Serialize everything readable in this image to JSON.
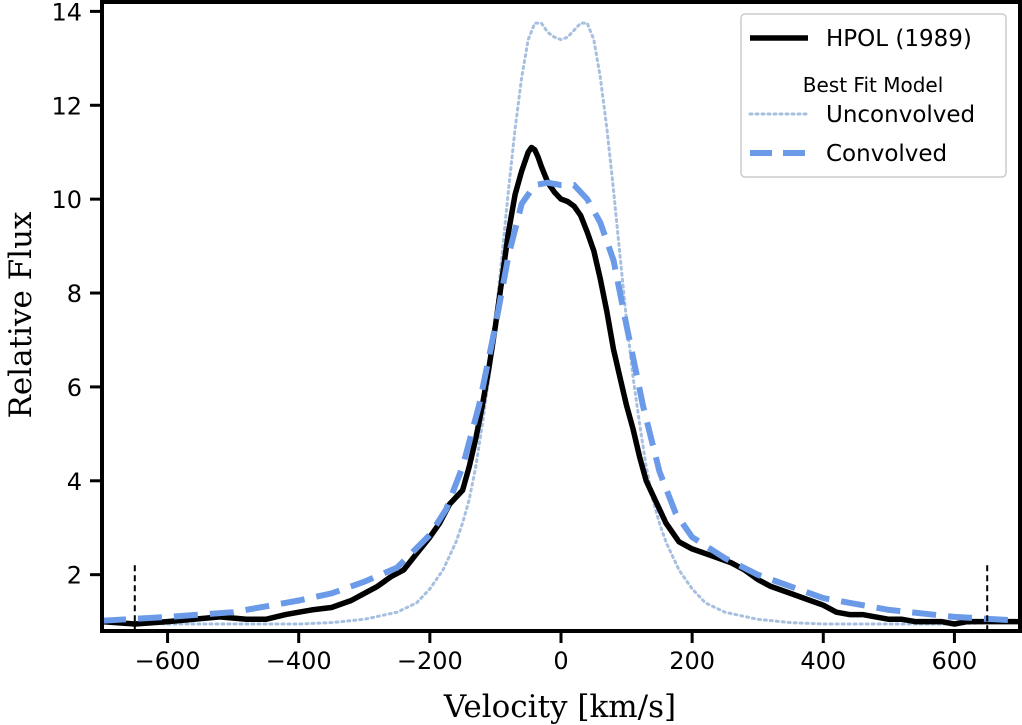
{
  "chart_data": {
    "type": "line",
    "title": "",
    "xlabel": "Velocity [km/s]",
    "ylabel": "Relative Flux",
    "xlim": [
      -700,
      700
    ],
    "ylim": [
      0.8,
      14.2
    ],
    "xticks": [
      -600,
      -400,
      -200,
      0,
      200,
      400,
      600
    ],
    "xtick_labels": [
      "−600",
      "−400",
      "−200",
      "0",
      "200",
      "400",
      "600"
    ],
    "yticks": [
      2,
      4,
      6,
      8,
      10,
      12,
      14
    ],
    "ytick_labels": [
      "2",
      "4",
      "6",
      "8",
      "10",
      "12",
      "14"
    ],
    "grid": false,
    "legend_position": "top-right",
    "legend": {
      "entry1": "HPOL (1989)",
      "group_title": "Best Fit Model",
      "entry2": "Unconvolved",
      "entry3": "Convolved"
    },
    "vlines": [
      -650,
      650
    ],
    "colors": {
      "hpol": "#000000",
      "unconvolved": "#a7c0e0",
      "convolved": "#6b9be8"
    },
    "series": [
      {
        "name": "HPOL (1989)",
        "style": "solid",
        "x": [
          -700,
          -650,
          -600,
          -560,
          -520,
          -480,
          -450,
          -420,
          -400,
          -380,
          -350,
          -320,
          -300,
          -280,
          -260,
          -240,
          -220,
          -200,
          -185,
          -170,
          -150,
          -140,
          -130,
          -120,
          -110,
          -100,
          -90,
          -80,
          -70,
          -60,
          -50,
          -45,
          -40,
          -35,
          -30,
          -20,
          -10,
          0,
          10,
          20,
          30,
          40,
          50,
          60,
          70,
          80,
          90,
          100,
          110,
          120,
          130,
          140,
          150,
          160,
          180,
          200,
          220,
          240,
          260,
          280,
          300,
          320,
          350,
          380,
          400,
          420,
          440,
          460,
          480,
          500,
          520,
          540,
          560,
          580,
          600,
          620,
          650,
          680,
          700
        ],
        "y": [
          1.0,
          0.95,
          1.0,
          1.05,
          1.1,
          1.05,
          1.05,
          1.15,
          1.2,
          1.25,
          1.3,
          1.45,
          1.6,
          1.75,
          1.95,
          2.1,
          2.45,
          2.8,
          3.1,
          3.5,
          3.8,
          4.3,
          4.9,
          5.6,
          6.4,
          7.3,
          8.3,
          9.3,
          10.1,
          10.6,
          11.0,
          11.1,
          11.05,
          10.9,
          10.7,
          10.35,
          10.15,
          10.0,
          9.95,
          9.85,
          9.65,
          9.3,
          8.9,
          8.3,
          7.6,
          6.8,
          6.2,
          5.6,
          5.1,
          4.5,
          4.0,
          3.7,
          3.4,
          3.1,
          2.7,
          2.55,
          2.45,
          2.35,
          2.25,
          2.1,
          1.9,
          1.75,
          1.6,
          1.45,
          1.35,
          1.2,
          1.15,
          1.15,
          1.1,
          1.05,
          1.05,
          1.0,
          1.0,
          1.0,
          0.95,
          1.0,
          1.0,
          1.0,
          1.0
        ]
      },
      {
        "name": "Unconvolved",
        "style": "dotted",
        "x": [
          -700,
          -600,
          -500,
          -400,
          -350,
          -300,
          -250,
          -220,
          -200,
          -180,
          -160,
          -150,
          -140,
          -130,
          -120,
          -110,
          -100,
          -90,
          -80,
          -70,
          -60,
          -50,
          -40,
          -30,
          -20,
          -10,
          0,
          10,
          20,
          30,
          40,
          50,
          60,
          70,
          80,
          90,
          100,
          110,
          120,
          130,
          140,
          150,
          160,
          180,
          200,
          220,
          250,
          300,
          350,
          400,
          500,
          600,
          700
        ],
        "y": [
          1.0,
          0.95,
          0.95,
          0.95,
          0.98,
          1.05,
          1.2,
          1.4,
          1.7,
          2.1,
          2.7,
          3.1,
          3.6,
          4.3,
          5.2,
          6.2,
          7.4,
          8.8,
          10.2,
          11.5,
          12.6,
          13.4,
          13.75,
          13.75,
          13.55,
          13.45,
          13.4,
          13.45,
          13.6,
          13.75,
          13.75,
          13.4,
          12.6,
          11.5,
          10.2,
          8.8,
          7.4,
          6.2,
          5.2,
          4.3,
          3.6,
          3.1,
          2.7,
          2.1,
          1.7,
          1.4,
          1.2,
          1.05,
          0.98,
          0.95,
          0.95,
          0.95,
          1.0
        ]
      },
      {
        "name": "Convolved",
        "style": "dashed",
        "x": [
          -700,
          -600,
          -500,
          -400,
          -350,
          -300,
          -250,
          -200,
          -175,
          -150,
          -125,
          -100,
          -80,
          -60,
          -40,
          -20,
          0,
          20,
          40,
          60,
          80,
          100,
          125,
          150,
          175,
          200,
          250,
          300,
          350,
          400,
          500,
          600,
          700
        ],
        "y": [
          1.02,
          1.1,
          1.2,
          1.45,
          1.6,
          1.85,
          2.15,
          2.85,
          3.4,
          4.3,
          5.6,
          7.3,
          8.8,
          9.9,
          10.3,
          10.35,
          10.3,
          10.3,
          10.0,
          9.5,
          8.7,
          7.3,
          5.6,
          4.2,
          3.3,
          2.8,
          2.35,
          2.0,
          1.75,
          1.5,
          1.25,
          1.1,
          1.02
        ]
      }
    ]
  }
}
